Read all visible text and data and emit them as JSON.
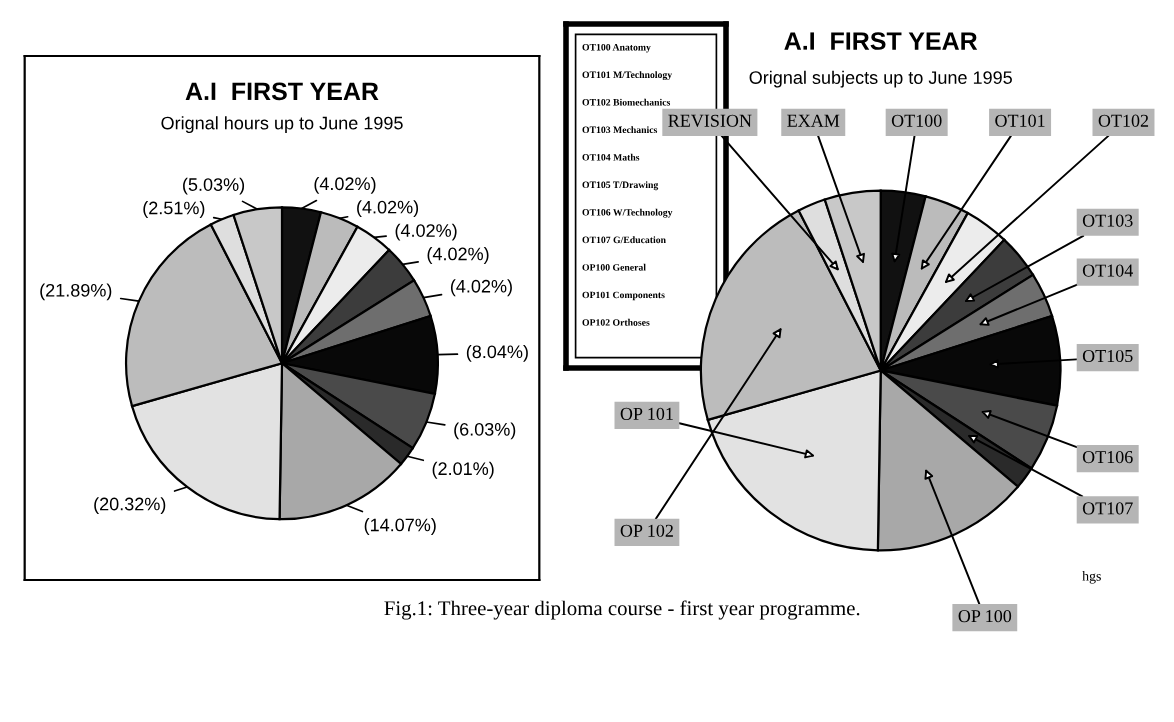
{
  "chart_data": [
    {
      "type": "pie",
      "title": "A.I  FIRST YEAR",
      "subtitle": "Orignal hours up to June 1995",
      "categories": [
        null,
        null,
        null,
        null,
        null,
        null,
        null,
        null,
        null,
        null,
        null,
        null,
        null
      ],
      "values": [
        4.02,
        4.02,
        4.02,
        4.02,
        4.02,
        8.04,
        6.03,
        2.01,
        14.07,
        20.32,
        21.89,
        2.51,
        5.03
      ],
      "value_labels": [
        "(4.02%)",
        "(4.02%)",
        "(4.02%)",
        "(4.02%)",
        "(4.02%)",
        "(8.04%)",
        "(6.03%)",
        "(2.01%)",
        "(14.07%)",
        "(20.32%)",
        "(21.89%)",
        "(2.51%)",
        "(5.03%)"
      ],
      "colors": [
        "#111111",
        "#bbbbbb",
        "#ececec",
        "#3c3c3c",
        "#6e6e6e",
        "#080808",
        "#4a4a4a",
        "#2a2a2a",
        "#a8a8a8",
        "#e2e2e2",
        "#bcbcbc",
        "#dedede",
        "#c8c8c8"
      ]
    },
    {
      "type": "other",
      "annotations": [
        "OT100 Anatomy",
        "OT101 M/Technology",
        "OT102 Biomechanics",
        "OT103 Mechanics",
        "OT104 Maths",
        "OT105 T/Drawing",
        "OT106 W/Technology",
        "OT107 G/Education",
        "OP100 General",
        "OP101 Components",
        "OP102 Orthoses"
      ]
    },
    {
      "type": "pie",
      "title": "A.I  FIRST YEAR",
      "subtitle": "Orignal subjects up to June 1995",
      "categories": [
        "OT100",
        "OT101",
        "OT102",
        "OT103",
        "OT104",
        "OT105",
        "OT106",
        "OT107",
        "OP 100",
        "OP 101",
        "OP 102",
        "REVISION",
        "EXAM"
      ],
      "values": [
        4.02,
        4.02,
        4.02,
        4.02,
        4.02,
        8.04,
        6.03,
        2.01,
        14.07,
        20.32,
        21.89,
        2.51,
        5.03
      ],
      "colors": [
        "#111111",
        "#bbbbbb",
        "#ececec",
        "#3c3c3c",
        "#6e6e6e",
        "#080808",
        "#4a4a4a",
        "#2a2a2a",
        "#a8a8a8",
        "#e2e2e2",
        "#bcbcbc",
        "#dedede",
        "#c8c8c8"
      ],
      "annotations": [
        "hgs"
      ]
    },
    {
      "type": "other",
      "annotations": [
        "Fig.1: Three-year diploma course - first year programme."
      ]
    }
  ]
}
